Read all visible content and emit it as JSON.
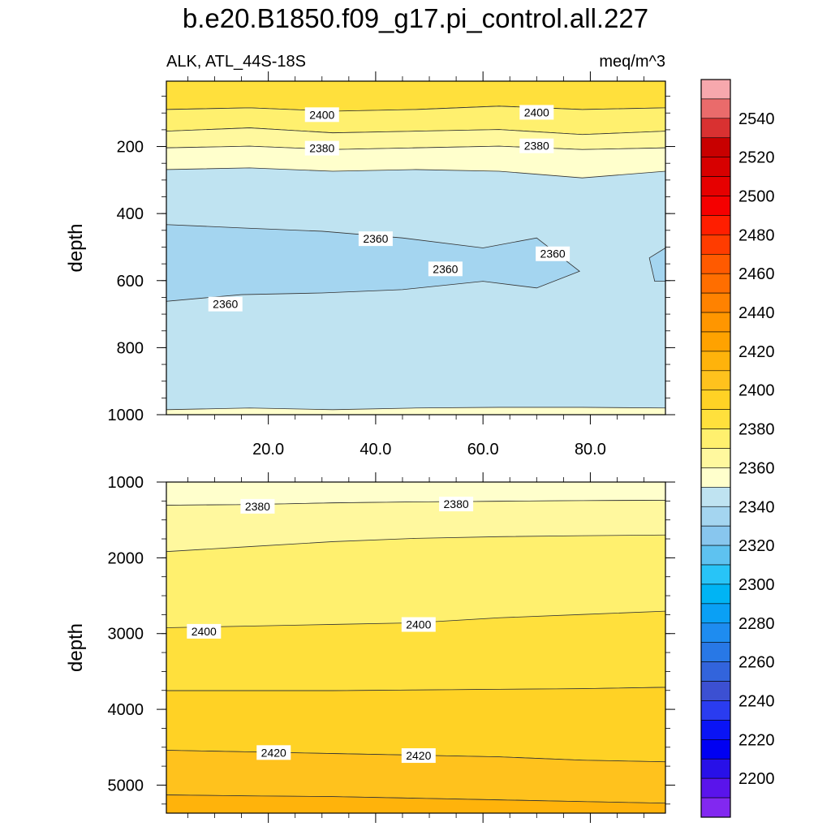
{
  "chart_data": {
    "type": "contour",
    "title": "b.e20.B1850.f09_g17.pi_control.all.227",
    "left_subtitle": "ALK, ATL_44S-18S",
    "right_subtitle": "meq/m^3",
    "variable": "ALK",
    "region": "ATL_44S-18S",
    "units": "meq/m^3",
    "x_tick_labels": [
      "20.0",
      "40.0",
      "60.0",
      "80.0"
    ],
    "x_ticks": [
      20,
      40,
      60,
      80
    ],
    "xlim": [
      1,
      94
    ],
    "panels": [
      {
        "name": "upper",
        "ylabel": "depth",
        "ylim": [
          1000,
          5
        ],
        "y_ticks": [
          200,
          400,
          600,
          800,
          1000
        ],
        "y_tick_labels": [
          "200",
          "400",
          "600",
          "800",
          "1000"
        ],
        "contour_labels": [
          {
            "value": "2400",
            "x": 30,
            "y": 105
          },
          {
            "value": "2400",
            "x": 70,
            "y": 98
          },
          {
            "value": "2380",
            "x": 30,
            "y": 205
          },
          {
            "value": "2380",
            "x": 70,
            "y": 198
          },
          {
            "value": "2360",
            "x": 40,
            "y": 475
          },
          {
            "value": "2360",
            "x": 73,
            "y": 520
          },
          {
            "value": "2360",
            "x": 53,
            "y": 565
          },
          {
            "value": "2360",
            "x": 12,
            "y": 670
          }
        ]
      },
      {
        "name": "lower",
        "ylabel": "depth",
        "ylim": [
          5370,
          1000
        ],
        "y_ticks": [
          1000,
          2000,
          3000,
          4000,
          5000
        ],
        "y_tick_labels": [
          "1000",
          "2000",
          "3000",
          "4000",
          "5000"
        ],
        "contour_labels": [
          {
            "value": "2380",
            "x": 18,
            "y": 1320
          },
          {
            "value": "2380",
            "x": 55,
            "y": 1290
          },
          {
            "value": "2400",
            "x": 8,
            "y": 2970
          },
          {
            "value": "2400",
            "x": 48,
            "y": 2880
          },
          {
            "value": "2420",
            "x": 21,
            "y": 4570
          },
          {
            "value": "2420",
            "x": 48,
            "y": 4610
          }
        ]
      }
    ],
    "colorbar": {
      "labels": [
        "2200",
        "2220",
        "2240",
        "2260",
        "2280",
        "2300",
        "2320",
        "2340",
        "2360",
        "2380",
        "2400",
        "2420",
        "2440",
        "2460",
        "2480",
        "2500",
        "2520",
        "2540"
      ],
      "colors": [
        "#f7a8ad",
        "#ea6b6b",
        "#d93131",
        "#c80000",
        "#d70000",
        "#e60000",
        "#f50000",
        "#ff1e00",
        "#ff3c00",
        "#ff5a00",
        "#ff6e00",
        "#ff8200",
        "#ff9600",
        "#ffa200",
        "#ffb30b",
        "#ffc21d",
        "#ffd225",
        "#ffe03c",
        "#fff06e",
        "#fff89e",
        "#ffffcc",
        "#bfe3f1",
        "#a4d5f0",
        "#88c6ee",
        "#5ec2f0",
        "#28c4f7",
        "#00b4f4",
        "#0aa0f5",
        "#1e8cf0",
        "#2878e6",
        "#3264dc",
        "#3c50d2",
        "#2a3cf0",
        "#0a14f5",
        "#0000f2",
        "#2810e8",
        "#5a14eb",
        "#8228f0"
      ]
    }
  }
}
